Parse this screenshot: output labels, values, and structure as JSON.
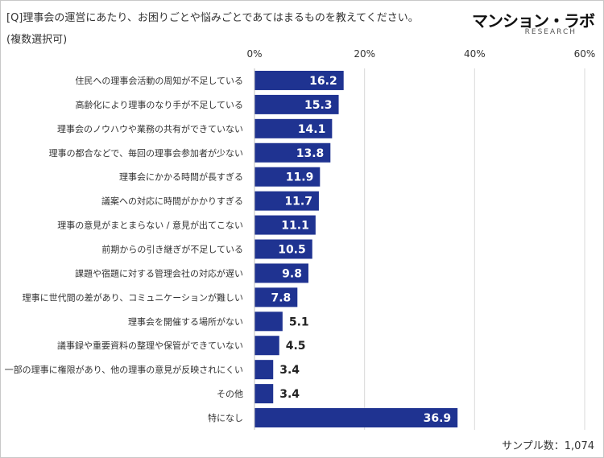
{
  "question": "[Q]理事会の運営にあたり、お困りごとや悩みごとであてはまるものを教えてください。",
  "note": "(複数選択可)",
  "logo": {
    "main": "マンション・ラボ",
    "sub": "RESEARCH"
  },
  "sample_size": "サンプル数：1,074",
  "colors": {
    "bar": "#1f3391",
    "grid": "#d9d9d9",
    "value_inside": "#ffffff",
    "value_outside": "#222222"
  },
  "chart_data": {
    "type": "bar",
    "orientation": "horizontal",
    "title": "",
    "xlabel": "",
    "ylabel": "",
    "xlim": [
      0,
      60
    ],
    "x_ticks": [
      0,
      20,
      40,
      60
    ],
    "x_tick_labels": [
      "0%",
      "20%",
      "40%",
      "60%"
    ],
    "grid": true,
    "categories": [
      "住民への理事会活動の周知が不足している",
      "高齢化により理事のなり手が不足している",
      "理事会のノウハウや業務の共有ができていない",
      "理事の都合などで、毎回の理事会参加者が少ない",
      "理事会にかかる時間が長すぎる",
      "議案への対応に時間がかかりすぎる",
      "理事の意見がまとまらない / 意見が出てこない",
      "前期からの引き継ぎが不足している",
      "課題や宿題に対する管理会社の対応が遅い",
      "理事に世代間の差があり、コミュニケーションが難しい",
      "理事会を開催する場所がない",
      "議事録や重要資料の整理や保管ができていない",
      "一部の理事に権限があり、他の理事の意見が反映されにくい",
      "その他",
      "特になし"
    ],
    "values": [
      16.2,
      15.3,
      14.1,
      13.8,
      11.9,
      11.7,
      11.1,
      10.5,
      9.8,
      7.8,
      5.1,
      4.5,
      3.4,
      3.4,
      36.9
    ],
    "value_labels": [
      "16.2",
      "15.3",
      "14.1",
      "13.8",
      "11.9",
      "11.7",
      "11.1",
      "10.5",
      "9.8",
      "7.8",
      "5.1",
      "4.5",
      "3.4",
      "3.4",
      "36.9"
    ]
  }
}
